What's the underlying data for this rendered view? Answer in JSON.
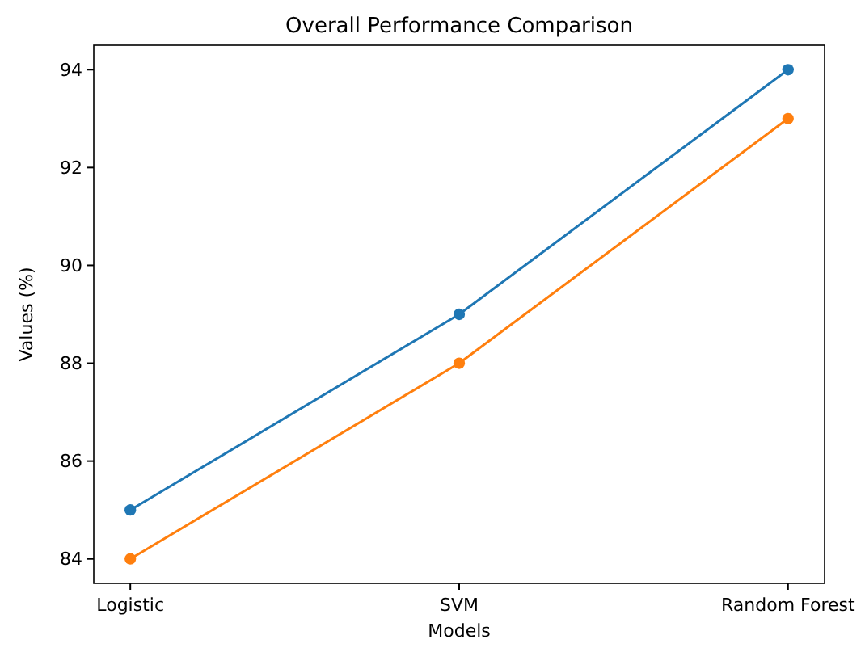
{
  "chart_data": {
    "type": "line",
    "title": "Overall Performance Comparison",
    "xlabel": "Models",
    "ylabel": "Values (%)",
    "categories": [
      "Logistic",
      "SVM",
      "Random Forest"
    ],
    "series": [
      {
        "color": "#1f77b4",
        "values": [
          85,
          89,
          94
        ]
      },
      {
        "color": "#ff7f0e",
        "values": [
          84,
          88,
          93
        ]
      }
    ],
    "ylim": [
      83.5,
      94.5
    ],
    "yticks": [
      84,
      86,
      88,
      90,
      92,
      94
    ],
    "marker": "circle",
    "grid": false
  }
}
